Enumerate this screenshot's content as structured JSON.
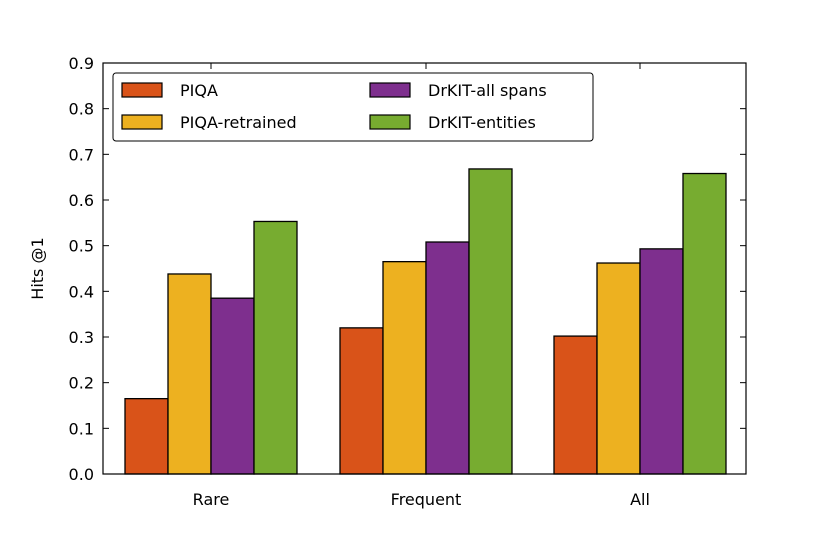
{
  "chart_data": {
    "type": "bar",
    "title": "",
    "xlabel": "",
    "ylabel": "Hits @1",
    "ylim": [
      0,
      0.9
    ],
    "yticks": [
      "0.0",
      "0.1",
      "0.2",
      "0.3",
      "0.4",
      "0.5",
      "0.6",
      "0.7",
      "0.8",
      "0.9"
    ],
    "categories": [
      "Rare",
      "Frequent",
      "All"
    ],
    "legend_position": "top-left",
    "series": [
      {
        "name": "PIQA",
        "color": "#d95319",
        "values": [
          0.165,
          0.32,
          0.302
        ]
      },
      {
        "name": "PIQA-retrained",
        "color": "#edb120",
        "values": [
          0.438,
          0.465,
          0.462
        ]
      },
      {
        "name": "DrKIT-all spans",
        "color": "#7e2f8e",
        "values": [
          0.385,
          0.508,
          0.493
        ]
      },
      {
        "name": "DrKIT-entities",
        "color": "#77ac30",
        "values": [
          0.553,
          0.668,
          0.658
        ]
      }
    ]
  }
}
